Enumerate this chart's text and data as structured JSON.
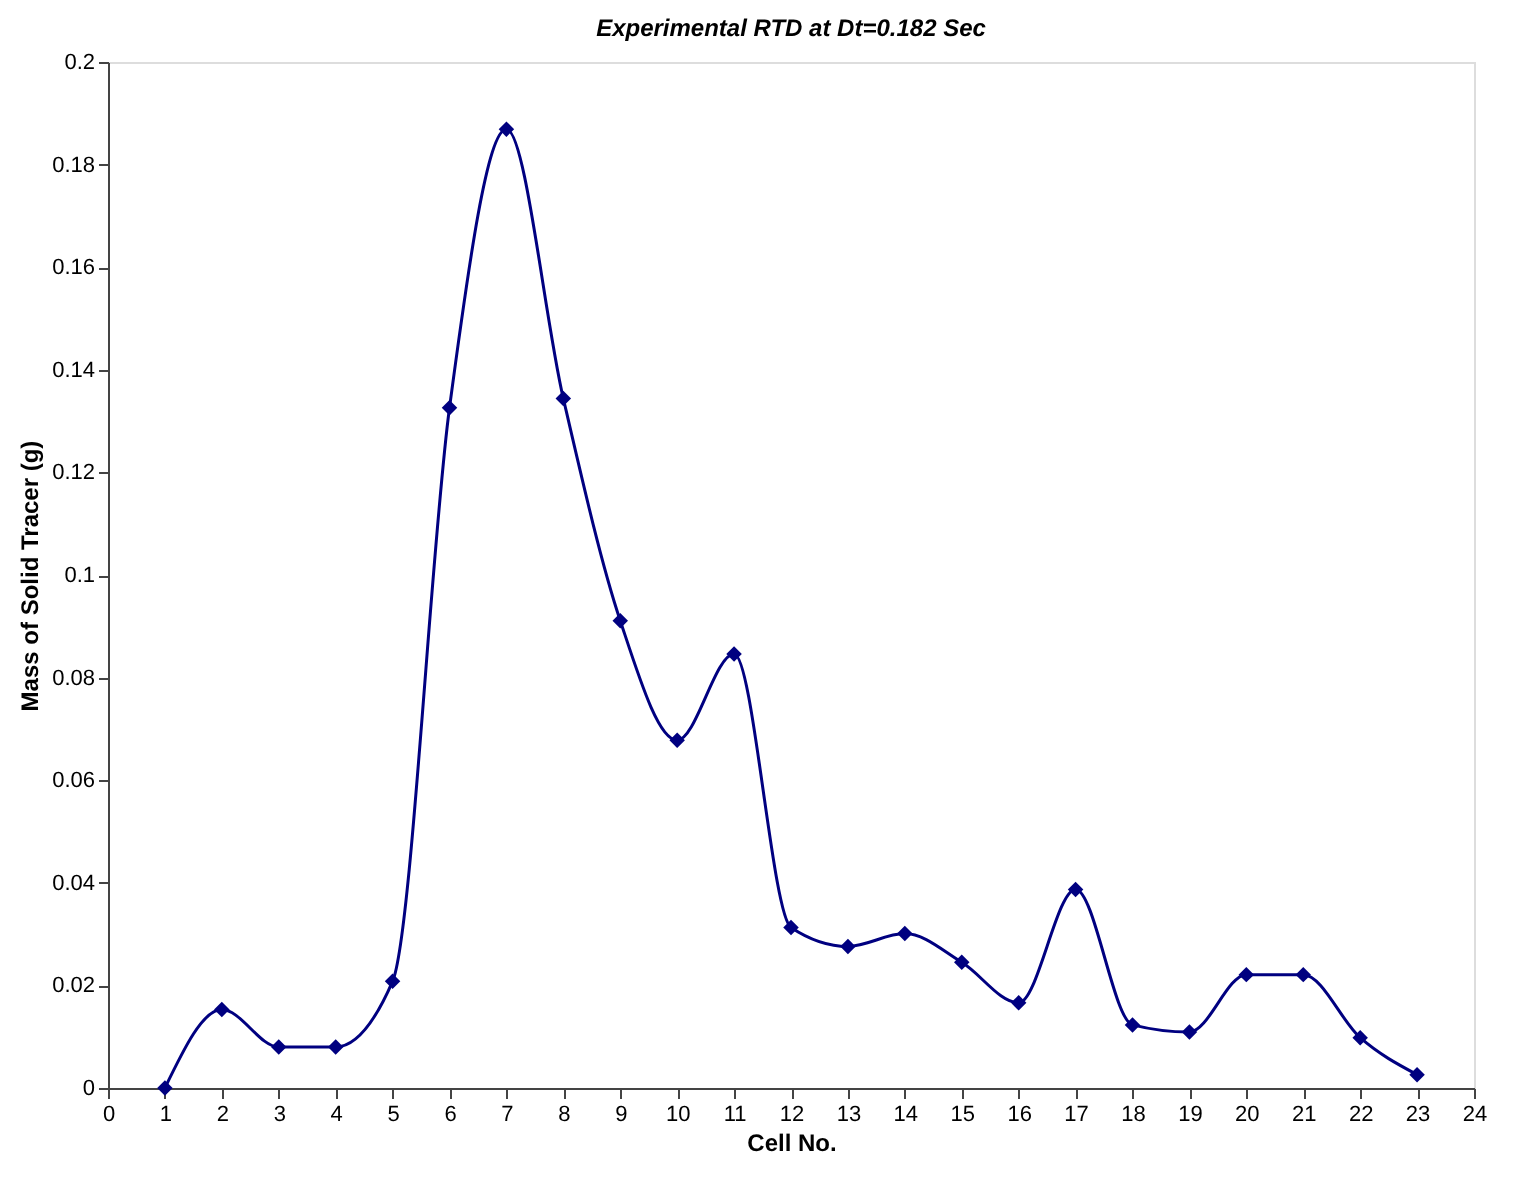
{
  "chart_data": {
    "type": "line",
    "title": "Experimental RTD  at Dt=0.182 Sec",
    "xlabel": "Cell No.",
    "ylabel": "Mass of Solid Tracer (g)",
    "x": [
      1,
      2,
      3,
      4,
      5,
      6,
      7,
      8,
      9,
      10,
      11,
      12,
      13,
      14,
      15,
      16,
      17,
      18,
      19,
      20,
      21,
      22,
      23
    ],
    "series": [
      {
        "color": "#000080",
        "values": [
          0,
          0.0153,
          0.008,
          0.008,
          0.0208,
          0.1326,
          0.1869,
          0.1344,
          0.0911,
          0.0678,
          0.0846,
          0.0313,
          0.0276,
          0.0301,
          0.0245,
          0.0166,
          0.0387,
          0.0123,
          0.0109,
          0.0221,
          0.0221,
          0.0098,
          0.0026
        ]
      }
    ],
    "xlim": [
      0,
      24
    ],
    "xticks": [
      0,
      1,
      2,
      3,
      4,
      5,
      6,
      7,
      8,
      9,
      10,
      11,
      12,
      13,
      14,
      15,
      16,
      17,
      18,
      19,
      20,
      21,
      22,
      23,
      24
    ],
    "ylim": [
      0,
      0.2
    ],
    "yticks": [
      0,
      0.02,
      0.04,
      0.06,
      0.08,
      0.1,
      0.12,
      0.14,
      0.16,
      0.18,
      0.2
    ],
    "grid": false,
    "marker": "diamond",
    "line_style": "solid"
  }
}
